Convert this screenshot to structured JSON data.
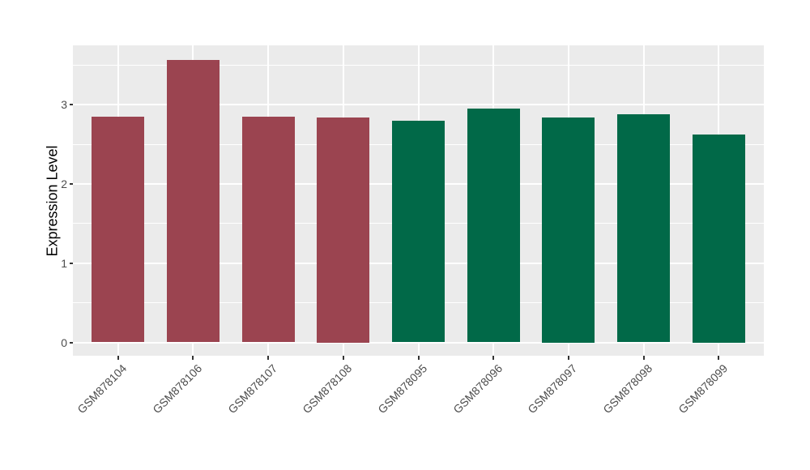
{
  "chart_data": {
    "type": "bar",
    "title": "",
    "xlabel": "",
    "ylabel": "Expression Level",
    "categories": [
      "GSM878104",
      "GSM878106",
      "GSM878107",
      "GSM878108",
      "GSM878095",
      "GSM878096",
      "GSM878097",
      "GSM878098",
      "GSM878099"
    ],
    "values": [
      2.85,
      3.57,
      2.85,
      2.84,
      2.8,
      2.95,
      2.84,
      2.88,
      2.63
    ],
    "bar_colors": [
      "#9B4450",
      "#9B4450",
      "#9B4450",
      "#9B4450",
      "#016948",
      "#016948",
      "#016948",
      "#016948",
      "#016948"
    ],
    "groups": [
      {
        "name": "red-group",
        "color": "#9B4450",
        "categories": [
          "GSM878104",
          "GSM878106",
          "GSM878107",
          "GSM878108"
        ]
      },
      {
        "name": "green-group",
        "color": "#016948",
        "categories": [
          "GSM878095",
          "GSM878096",
          "GSM878097",
          "GSM878098",
          "GSM878099"
        ]
      }
    ],
    "yticks": [
      0,
      1,
      2,
      3
    ],
    "ytick_labels": [
      "0",
      "1",
      "2",
      "3"
    ],
    "yticks_minor": [
      0.5,
      1.5,
      2.5,
      3.5
    ],
    "ylim": [
      -0.17,
      3.75
    ],
    "grid": true,
    "legend": null,
    "colors": {
      "page_bg": "#FFFFFF",
      "panel_bg": "#EBEBEB",
      "grid_major": "#FFFFFF",
      "grid_minor": "#FFFFFF",
      "axis_text": "#4D4D4D",
      "axis_title": "#000000",
      "tick_mark": "#333333"
    }
  }
}
